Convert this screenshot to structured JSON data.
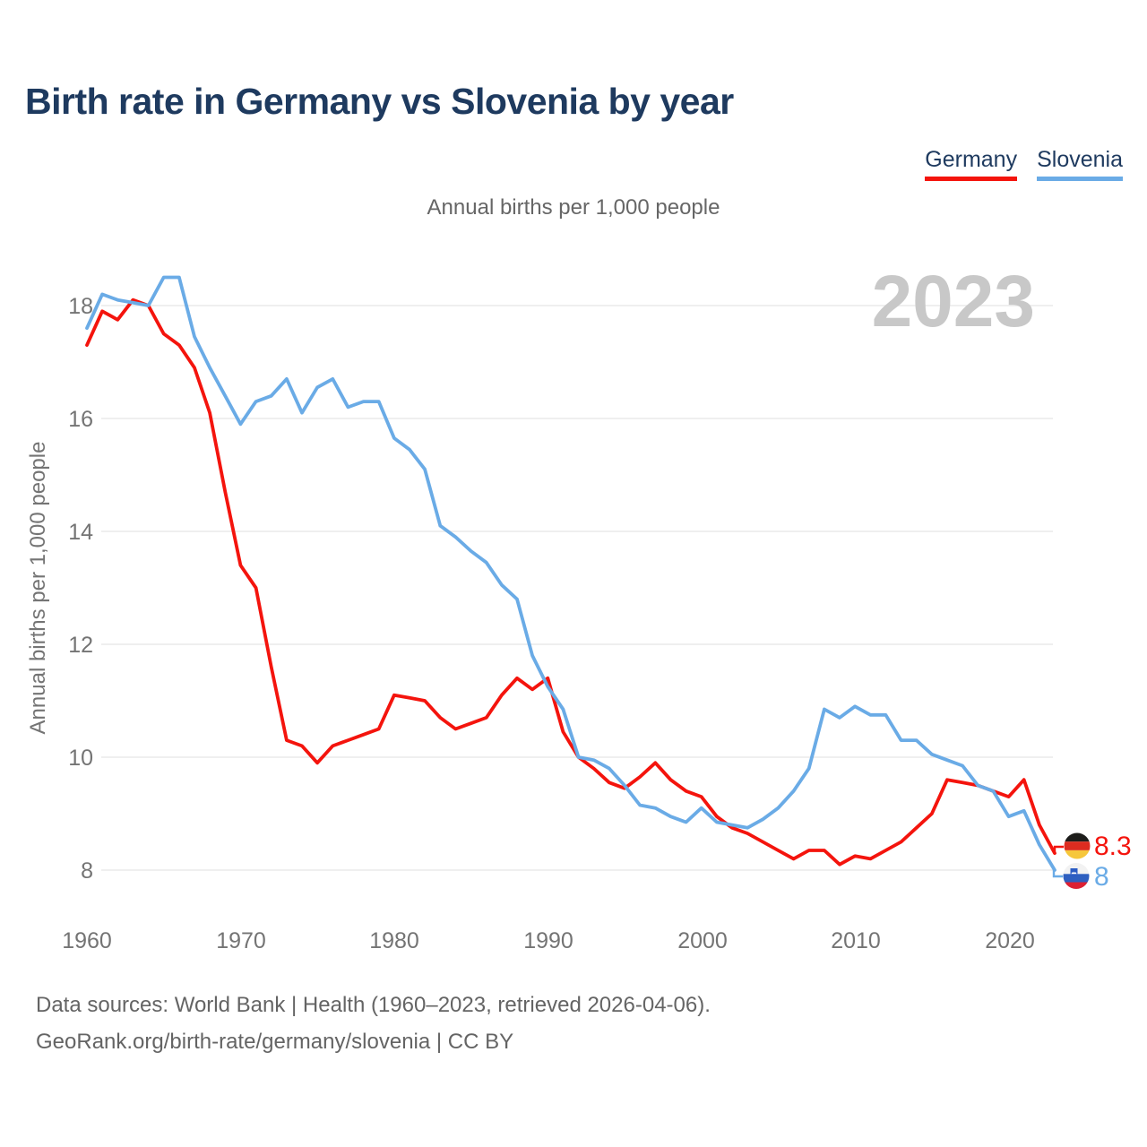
{
  "header": {
    "title": "Birth rate in Germany vs Slovenia by year"
  },
  "legend": [
    {
      "label": "Germany",
      "color": "#f4140d"
    },
    {
      "label": "Slovenia",
      "color": "#6aabe6"
    }
  ],
  "subtitle": "Annual births per 1,000 people",
  "watermark": "2023",
  "y_axis": {
    "title": "Annual births per 1,000 people",
    "ticks": [
      "18",
      "16",
      "14",
      "12",
      "10",
      "8"
    ]
  },
  "x_axis": {
    "ticks": [
      "1960",
      "1970",
      "1980",
      "1990",
      "2000",
      "2010",
      "2020"
    ]
  },
  "end_labels": [
    {
      "series": "Germany",
      "value": "8.3",
      "flag": "germany-flag"
    },
    {
      "series": "Slovenia",
      "value": "8",
      "flag": "slovenia-flag"
    }
  ],
  "footer": {
    "line1": "Data sources: World Bank | Health (1960–2023, retrieved 2026-04-06).",
    "line2": "GeoRank.org/birth-rate/germany/slovenia | CC BY"
  },
  "chart_data": {
    "type": "line",
    "title": "Birth rate in Germany vs Slovenia by year",
    "ylabel": "Annual births per 1,000 people",
    "xlabel": "",
    "ylim": [
      7.5,
      19
    ],
    "x_range": [
      1960,
      2023
    ],
    "grid": "horizontal",
    "legend_position": "top-right",
    "x": [
      1960,
      1961,
      1962,
      1963,
      1964,
      1965,
      1966,
      1967,
      1968,
      1969,
      1970,
      1971,
      1972,
      1973,
      1974,
      1975,
      1976,
      1977,
      1978,
      1979,
      1980,
      1981,
      1982,
      1983,
      1984,
      1985,
      1986,
      1987,
      1988,
      1989,
      1990,
      1991,
      1992,
      1993,
      1994,
      1995,
      1996,
      1997,
      1998,
      1999,
      2000,
      2001,
      2002,
      2003,
      2004,
      2005,
      2006,
      2007,
      2008,
      2009,
      2010,
      2011,
      2012,
      2013,
      2014,
      2015,
      2016,
      2017,
      2018,
      2019,
      2020,
      2021,
      2022,
      2023
    ],
    "series": [
      {
        "name": "Germany",
        "color": "#f4140d",
        "values": [
          17.3,
          17.9,
          17.75,
          18.1,
          18.0,
          17.5,
          17.3,
          16.9,
          16.1,
          14.7,
          13.4,
          13.0,
          11.6,
          10.3,
          10.2,
          9.9,
          10.2,
          10.3,
          10.4,
          10.5,
          11.1,
          11.05,
          11.0,
          10.7,
          10.5,
          10.6,
          10.7,
          11.1,
          11.4,
          11.2,
          11.4,
          10.45,
          10.0,
          9.8,
          9.55,
          9.45,
          9.65,
          9.9,
          9.6,
          9.4,
          9.3,
          8.95,
          8.75,
          8.65,
          8.5,
          8.35,
          8.2,
          8.35,
          8.35,
          8.1,
          8.25,
          8.2,
          8.35,
          8.5,
          8.75,
          9.0,
          9.6,
          9.55,
          9.5,
          9.4,
          9.3,
          9.6,
          8.8,
          8.3
        ]
      },
      {
        "name": "Slovenia",
        "color": "#6aabe6",
        "values": [
          17.6,
          18.2,
          18.1,
          18.05,
          18.0,
          18.5,
          18.5,
          17.45,
          16.9,
          16.4,
          15.9,
          16.3,
          16.4,
          16.7,
          16.1,
          16.55,
          16.7,
          16.2,
          16.3,
          16.3,
          15.65,
          15.45,
          15.1,
          14.1,
          13.9,
          13.65,
          13.45,
          13.05,
          12.8,
          11.8,
          11.25,
          10.85,
          10.0,
          9.95,
          9.8,
          9.5,
          9.15,
          9.1,
          8.95,
          8.85,
          9.1,
          8.85,
          8.8,
          8.75,
          8.9,
          9.1,
          9.4,
          9.8,
          10.85,
          10.7,
          10.9,
          10.75,
          10.75,
          10.3,
          10.3,
          10.05,
          9.95,
          9.85,
          9.5,
          9.4,
          8.95,
          9.05,
          8.45,
          8.0
        ]
      }
    ]
  }
}
